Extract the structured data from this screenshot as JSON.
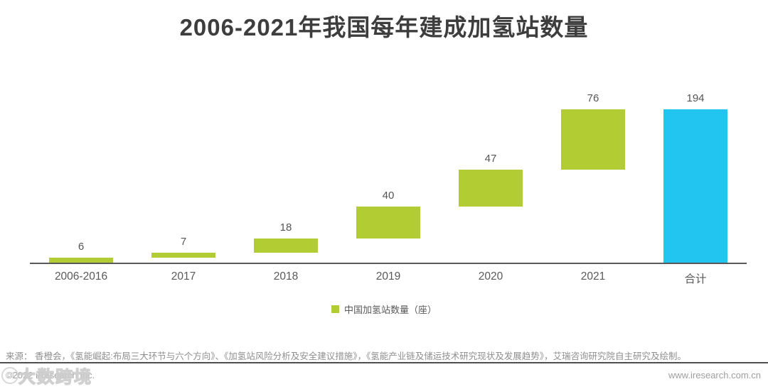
{
  "title": "2006-2021年我国每年建成加氢站数量",
  "chart_data": {
    "type": "bar",
    "subtype": "waterfall",
    "title": "2006-2021年我国每年建成加氢站数量",
    "categories": [
      "2006-2016",
      "2017",
      "2018",
      "2019",
      "2020",
      "2021",
      "合计"
    ],
    "values": [
      6,
      7,
      18,
      40,
      47,
      76,
      194
    ],
    "cumulative_starts": [
      0,
      6,
      13,
      31,
      71,
      118,
      0
    ],
    "is_total": [
      false,
      false,
      false,
      false,
      false,
      false,
      true
    ],
    "xlabel": "",
    "ylabel": "",
    "ylim": [
      0,
      194
    ],
    "grid": false,
    "legend_position": "bottom",
    "legend": [
      {
        "label": "中国加氢站数量（座）",
        "color": "#b2cc33"
      }
    ],
    "colors": {
      "series": "#b2cc33",
      "total": "#22c5f0",
      "axis": "#595959",
      "label": "#555555"
    }
  },
  "footer": {
    "source": "来源：  香橙会，《氢能崛起:布局三大环节与六个方向》、《加氢站风险分析及安全建议措施》，《氢能产业链及储运技术研究现状及发展趋势》，艾瑞咨询研究院自主研究及绘制。",
    "copyright": "©2022 iResearch Inc.",
    "watermark_logo": "10",
    "watermark": "大数跨境",
    "website": "www.iresearch.com.cn"
  }
}
